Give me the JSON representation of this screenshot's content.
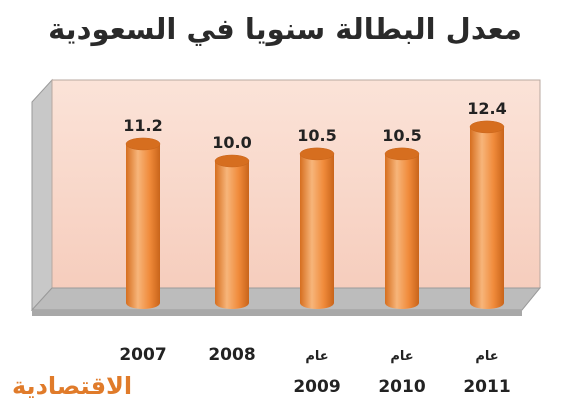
{
  "chart_data": {
    "type": "bar",
    "title": "معدل البطالة سنويا في السعودية",
    "categories": [
      "2007",
      "2008",
      "2009",
      "2010",
      "2011"
    ],
    "category_prefixes": [
      "",
      "",
      "عام",
      "عام",
      "عام"
    ],
    "values": [
      11.2,
      10.0,
      10.5,
      10.5,
      12.4
    ],
    "value_labels": [
      "11.2",
      "10.0",
      "10.5",
      "10.5",
      "12.4"
    ],
    "xlabel": "",
    "ylabel": "",
    "ylim": [
      0,
      13
    ],
    "grid": false,
    "legend": "none"
  },
  "colors": {
    "bar_main": "#f08a3a",
    "bar_light": "#f7b57a",
    "bar_dark": "#d66e1f",
    "back_wall": "#f9d9cc",
    "side_wall": "#c9c9c9",
    "floor": "#bdbdbd"
  },
  "watermark": "الاقتصادية"
}
